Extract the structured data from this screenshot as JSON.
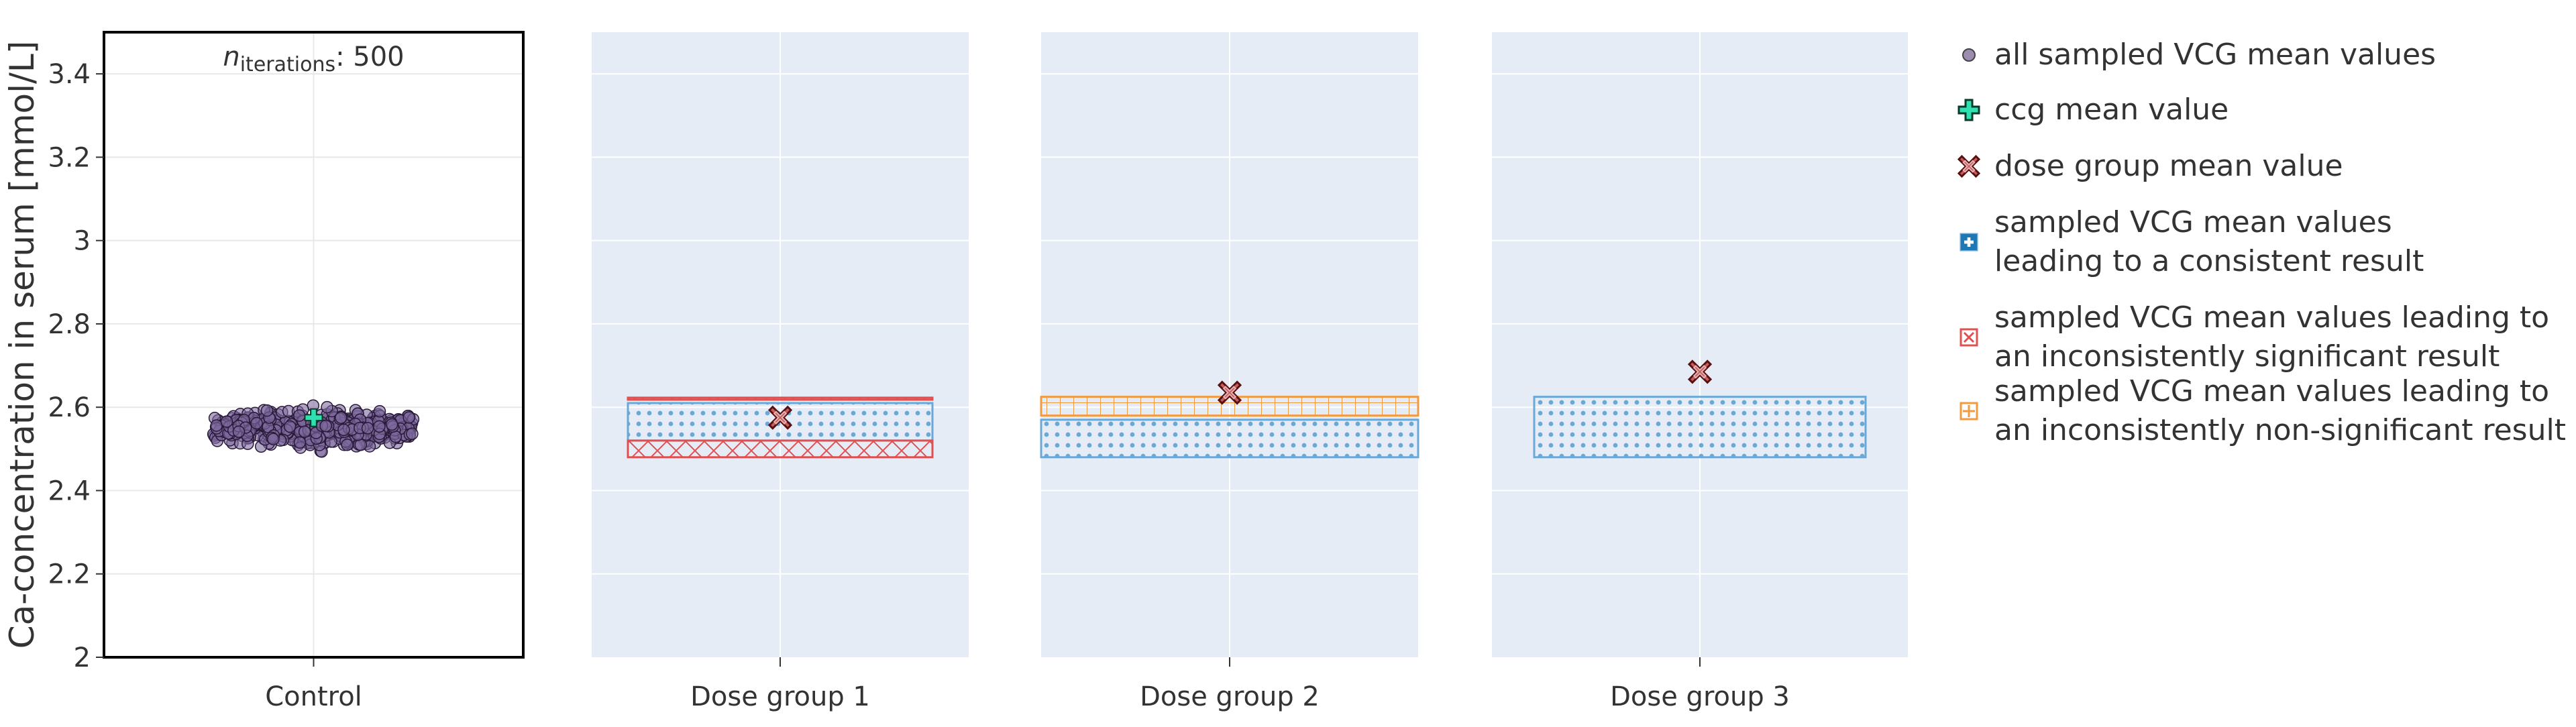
{
  "chart_data": {
    "type": "scatter",
    "ylabel": "Ca-concentration in serum [mmol/L]",
    "ylim": [
      2.0,
      3.5
    ],
    "yticks": [
      "2",
      "2.2",
      "2.4",
      "2.6",
      "2.8",
      "3",
      "3.2",
      "3.4"
    ],
    "annotation": {
      "prefix": "n",
      "subscript": "iterations",
      "suffix": ": 500"
    },
    "categories": [
      "Control",
      "Dose group 1",
      "Dose group 2",
      "Dose group 3"
    ],
    "control": {
      "n_points": 500,
      "y_min": 2.48,
      "y_max": 2.62,
      "center": 2.55,
      "ccg_mean": 2.575
    },
    "dose_groups": [
      {
        "name": "Dose group 1",
        "mean": 2.575,
        "regions": [
          {
            "kind": "consistent",
            "y0": 2.52,
            "y1": 2.61
          },
          {
            "kind": "inconsistently_significant",
            "y0": 2.48,
            "y1": 2.52
          },
          {
            "kind": "inconsistently_significant",
            "y0": 2.618,
            "y1": 2.623
          }
        ]
      },
      {
        "name": "Dose group 2",
        "mean": 2.635,
        "regions": [
          {
            "kind": "consistent",
            "y0": 2.48,
            "y1": 2.57
          },
          {
            "kind": "inconsistently_nonsignificant",
            "y0": 2.58,
            "y1": 2.625
          }
        ]
      },
      {
        "name": "Dose group 3",
        "mean": 2.685,
        "regions": [
          {
            "kind": "consistent",
            "y0": 2.48,
            "y1": 2.625
          }
        ]
      }
    ],
    "legend": {
      "position": "right",
      "items": [
        {
          "key": "sampled",
          "lines": [
            "all sampled VCG mean values"
          ]
        },
        {
          "key": "ccg",
          "lines": [
            "ccg mean value"
          ]
        },
        {
          "key": "dose",
          "lines": [
            "dose group mean value"
          ]
        },
        {
          "key": "consistent",
          "lines": [
            "sampled VCG mean values",
            "leading to a consistent result"
          ]
        },
        {
          "key": "inconsistently_significant",
          "lines": [
            "sampled VCG mean values leading to",
            "an inconsistently significant result"
          ]
        },
        {
          "key": "inconsistently_nonsignificant",
          "lines": [
            "sampled VCG mean values leading to",
            "an inconsistently non-significant result"
          ]
        }
      ]
    },
    "colors": {
      "panel_bg": "#e5ecf6",
      "grid": "#ffffff",
      "sample_point": "#7e6a9e",
      "sample_edge": "#2a1a3a",
      "ccg": "#2fe0b0",
      "dose": "#c06060",
      "dose_edge": "#5a1010",
      "consistent": "#6aa8d8",
      "inconsistently_significant": "#e05050",
      "inconsistently_nonsignificant": "#f29a40"
    }
  }
}
